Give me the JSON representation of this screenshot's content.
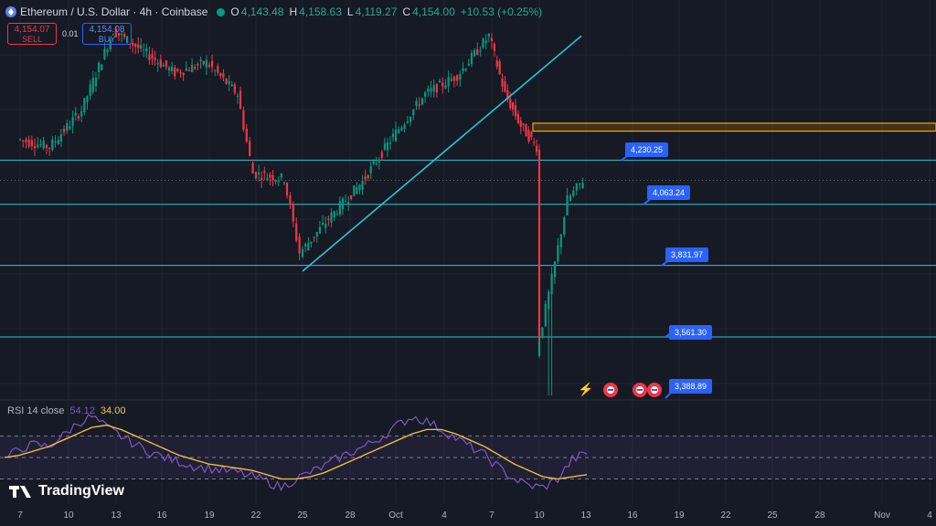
{
  "header": {
    "symbol": "Ethereum / U.S. Dollar · 4h · Coinbase",
    "o_label": "O",
    "o": "4,143.48",
    "h_label": "H",
    "h": "4,158.63",
    "l_label": "L",
    "l": "4,119.27",
    "c_label": "C",
    "c": "4,154.00",
    "change": "+10.53 (+0.25%)"
  },
  "trade": {
    "sell_price": "4,154.07",
    "sell_label": "SELL",
    "buy_price": "4,154.08",
    "buy_label": "BUY",
    "spread": "0.01"
  },
  "colors": {
    "bg": "#161a25",
    "up": "#089981",
    "down": "#f23645",
    "line": "#26c6da",
    "zone": "#f7a600",
    "accent": "#2962ff"
  },
  "chart_data": {
    "type": "candlestick",
    "title": "Ethereum / U.S. Dollar · 4h · Coinbase",
    "x_ticks": [
      "7",
      "10",
      "13",
      "16",
      "19",
      "22",
      "25",
      "28",
      "Oct",
      "4",
      "7",
      "10",
      "13",
      "16",
      "19",
      "22",
      "25",
      "28",
      "Nov",
      "4"
    ],
    "y_range": [
      3330,
      4760
    ],
    "price_path": [
      [
        "7",
        4310
      ],
      [
        "9",
        4280
      ],
      [
        "11",
        4420
      ],
      [
        "13",
        4720
      ],
      [
        "15",
        4640
      ],
      [
        "17",
        4560
      ],
      [
        "19",
        4600
      ],
      [
        "21",
        4480
      ],
      [
        "22",
        4180
      ],
      [
        "24",
        4160
      ],
      [
        "25",
        3880
      ],
      [
        "27",
        4020
      ],
      [
        "29",
        4150
      ],
      [
        "Oct 1",
        4320
      ],
      [
        "3",
        4480
      ],
      [
        "5",
        4550
      ],
      [
        "7",
        4700
      ],
      [
        "8",
        4480
      ],
      [
        "9",
        4360
      ],
      [
        "10",
        4280
      ],
      [
        "10",
        3500
      ],
      [
        "11",
        3780
      ],
      [
        "12",
        4080
      ],
      [
        "13",
        4154
      ]
    ],
    "horizontal_levels": [
      {
        "value": 4230.25,
        "label": "4,230.25"
      },
      {
        "value": 4063.24,
        "label": "4,063.24"
      },
      {
        "value": 3831.97,
        "label": "3,831.97"
      },
      {
        "value": 3561.3,
        "label": "3,561.30"
      },
      {
        "value": 3388.89,
        "label": "3,388.89"
      }
    ],
    "resistance_zone": [
      4340,
      4370
    ],
    "trendline": {
      "from": [
        "25",
        3810
      ],
      "to": [
        "13",
        4700
      ]
    },
    "last_price": 4154.0,
    "rsi": {
      "label": "RSI 14 close",
      "value": "54.12",
      "ma_value": "34.00",
      "upper": 70,
      "middle": 50,
      "lower": 30,
      "rsi_path": [
        48,
        58,
        62,
        60,
        70,
        82,
        88,
        78,
        70,
        62,
        55,
        50,
        46,
        42,
        40,
        38,
        36,
        32,
        28,
        22,
        30,
        36,
        42,
        50,
        56,
        62,
        70,
        80,
        88,
        84,
        76,
        68,
        60,
        52,
        40,
        30,
        24,
        22,
        30,
        48,
        54
      ],
      "ma_path": [
        50,
        52,
        56,
        60,
        66,
        72,
        78,
        80,
        76,
        70,
        64,
        58,
        52,
        48,
        44,
        42,
        40,
        38,
        34,
        30,
        30,
        32,
        36,
        42,
        48,
        54,
        60,
        66,
        72,
        76,
        76,
        72,
        66,
        60,
        52,
        44,
        38,
        32,
        30,
        32,
        34
      ]
    }
  },
  "watermark": "TradingView"
}
